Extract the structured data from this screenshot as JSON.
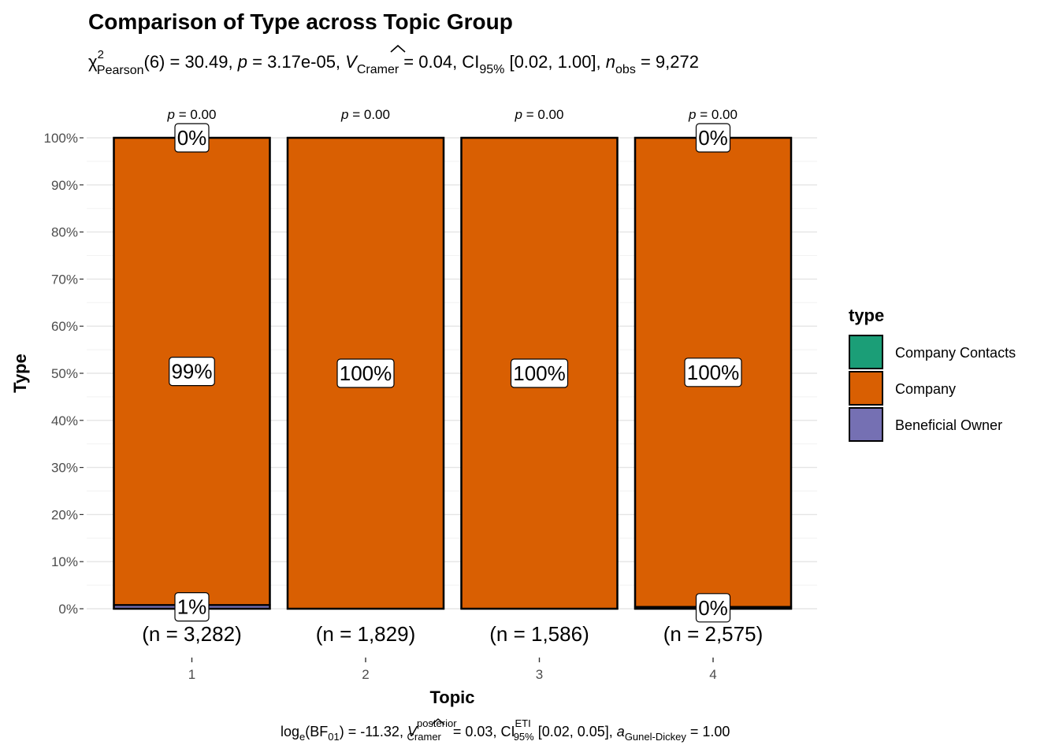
{
  "chart_data": {
    "type": "bar",
    "stacked": true,
    "percent": true,
    "title": "Comparison of Type across Topic Group",
    "subtitle": {
      "chi": "χ",
      "chi_sup": "2",
      "chi_sub": "Pearson",
      "df": "(6) = 30.49, ",
      "p_sym": "p",
      "p_val": " = 3.17e-05, ",
      "v_sym": "V",
      "v_hat": "^",
      "v_sub": "Cramer",
      "v_val": " = 0.04, CI",
      "ci_sub": "95%",
      "ci_val": " [0.02, 1.00], ",
      "n_sym": "n",
      "n_sub": "obs",
      "n_val": " = 9,272"
    },
    "caption": {
      "log": "log",
      "log_sub": "e",
      "bf": "(BF",
      "bf_sub": "01",
      "bf_val": ") = -11.32, ",
      "v_sym": "V",
      "v_hat": "^",
      "v_sup": "posterior",
      "v_sub": "Cramer",
      "v_val": " = 0.03, CI",
      "ci_sup": "ETI",
      "ci_sub": "95%",
      "ci_val": " [0.02, 0.05], ",
      "a_sym": "a",
      "a_sub": "Gunel-Dickey",
      "a_val": " = 1.00"
    },
    "xlabel": "Topic",
    "ylabel": "Type",
    "ylim": [
      0,
      100
    ],
    "yticks": [
      "0%",
      "10%",
      "20%",
      "30%",
      "40%",
      "50%",
      "60%",
      "70%",
      "80%",
      "90%",
      "100%"
    ],
    "categories": [
      "1",
      "2",
      "3",
      "4"
    ],
    "n_labels": [
      "(n = 3,282)",
      "(n = 1,829)",
      "(n = 1,586)",
      "(n = 2,575)"
    ],
    "p_labels": [
      "p = 0.00",
      "p = 0.00",
      "p = 0.00",
      "p = 0.00"
    ],
    "legend_title": "type",
    "legend_position": "right",
    "grid": true,
    "series": [
      {
        "name": "Company Contacts",
        "color": "#1b9e77",
        "values": [
          0.0,
          0.0,
          0.0,
          0.0
        ],
        "labels": [
          "0%",
          "",
          "",
          "0%"
        ]
      },
      {
        "name": "Company",
        "color": "#d95f02",
        "values": [
          99.2,
          100.0,
          100.0,
          99.6
        ],
        "labels": [
          "99%",
          "100%",
          "100%",
          "100%"
        ]
      },
      {
        "name": "Beneficial Owner",
        "color": "#7570b3",
        "values": [
          0.8,
          0.0,
          0.0,
          0.4
        ],
        "labels": [
          "1%",
          "",
          "",
          "0%"
        ]
      }
    ]
  }
}
